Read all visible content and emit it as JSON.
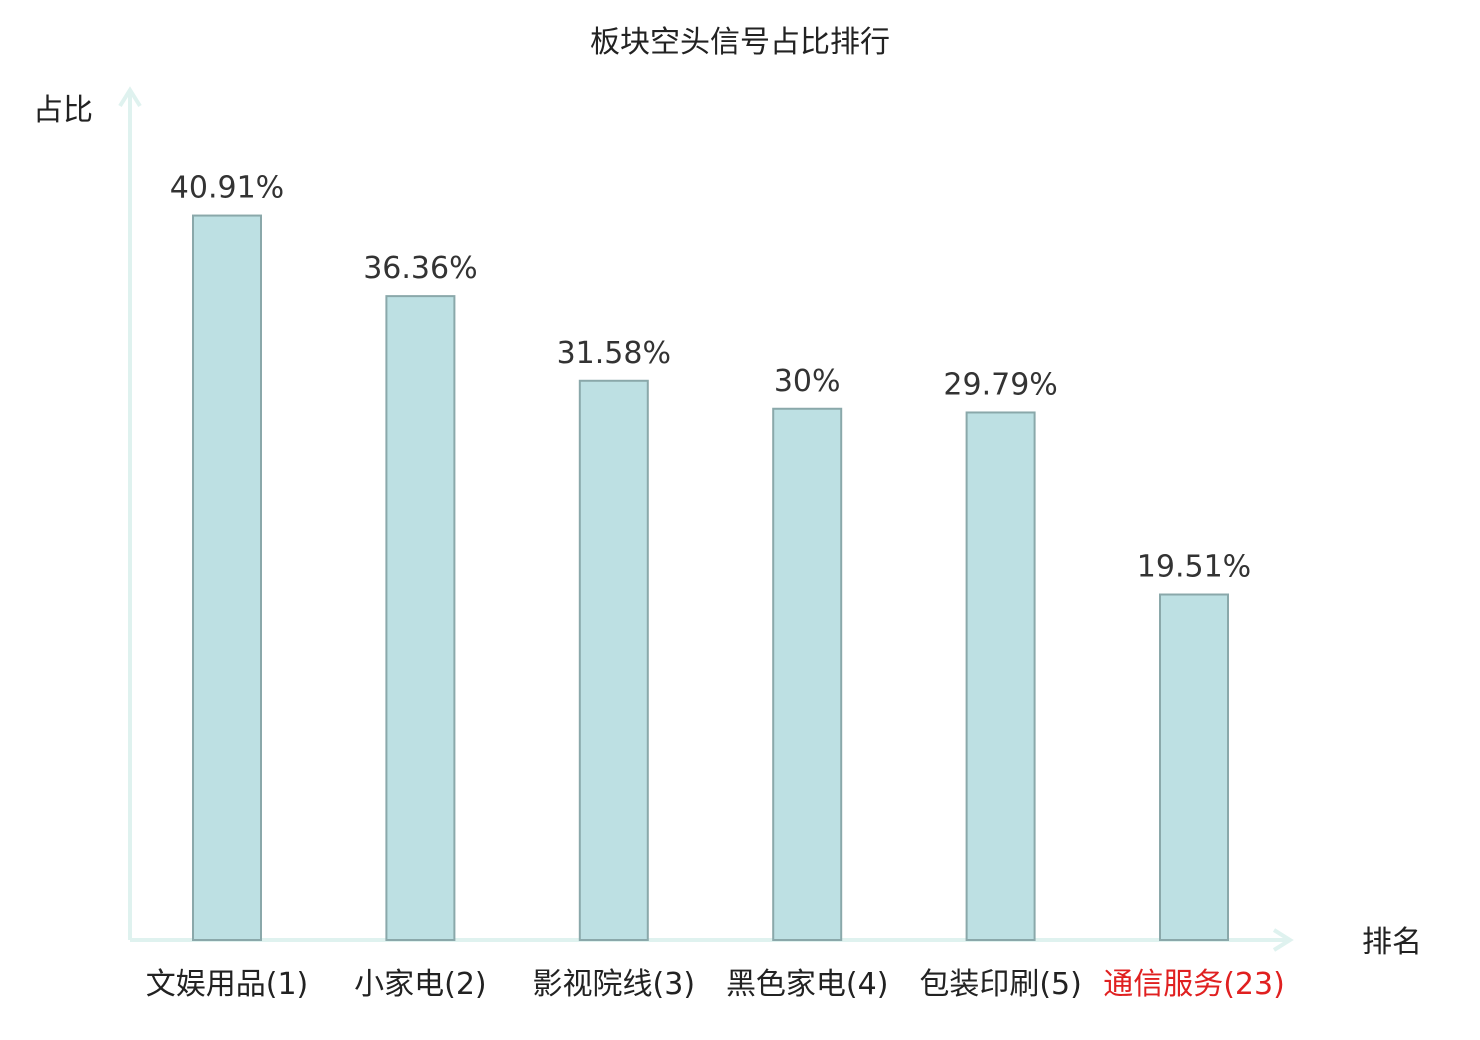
{
  "chart_data": {
    "type": "bar",
    "title": "板块空头信号占比排行",
    "ylabel": "占比",
    "xlabel": "排名",
    "categories": [
      "文娱用品(1)",
      "小家电(2)",
      "影视院线(3)",
      "黑色家电(4)",
      "包装印刷(5)",
      "通信服务(23)"
    ],
    "values": [
      40.91,
      36.36,
      31.58,
      30,
      29.79,
      19.51
    ],
    "value_labels": [
      "40.91%",
      "36.36%",
      "31.58%",
      "30%",
      "29.79%",
      "19.51%"
    ],
    "highlight_index": 5,
    "ylim": [
      0,
      48
    ],
    "grid": false,
    "colors": {
      "bar_fill": "#bde0e3",
      "bar_stroke": "#8aa8aa",
      "axis": "#dff2ef",
      "category_text": "#222222",
      "highlight_text": "#e02020"
    }
  }
}
